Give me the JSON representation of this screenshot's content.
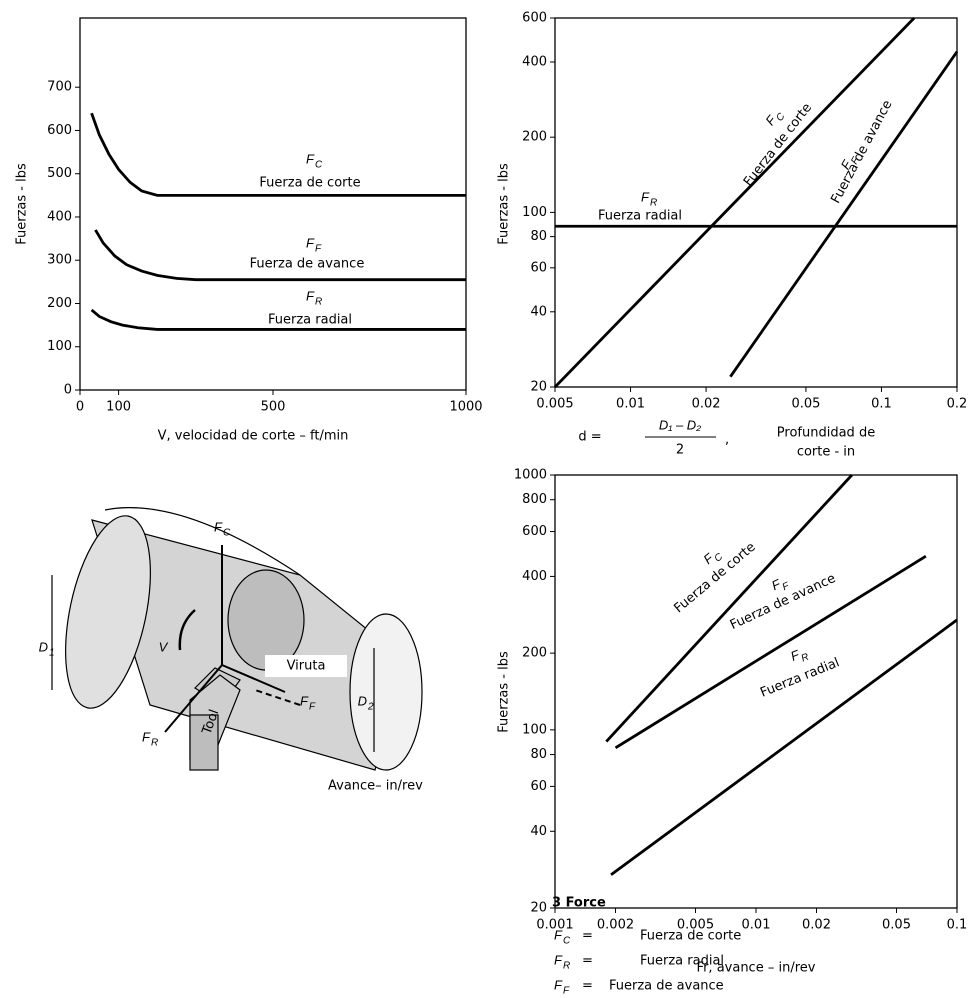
{
  "chart_data": [
    {
      "type": "line",
      "log_scale": false,
      "x_label": "V, velocidad de corte – ft/min",
      "y_label": "Fuerzas - lbs",
      "xlim": [
        0,
        1000
      ],
      "ylim": [
        0,
        860
      ],
      "xticks": [
        0,
        100,
        500,
        1000
      ],
      "yticks": [
        0,
        100,
        200,
        300,
        400,
        500,
        600,
        700
      ],
      "series": [
        {
          "name": "Fuerza de corte",
          "symbol": "F",
          "subscript": "C",
          "color": "#000000",
          "x": [
            30,
            50,
            75,
            100,
            130,
            160,
            200,
            250,
            500,
            1000
          ],
          "values": [
            640,
            590,
            545,
            510,
            480,
            460,
            450,
            450,
            450,
            450
          ]
        },
        {
          "name": "Fuerza de avance",
          "symbol": "F",
          "subscript": "F",
          "color": "#000000",
          "x": [
            40,
            60,
            90,
            120,
            160,
            200,
            250,
            300,
            500,
            1000
          ],
          "values": [
            370,
            340,
            310,
            290,
            275,
            265,
            258,
            255,
            255,
            255
          ]
        },
        {
          "name": "Fuerza radial",
          "symbol": "F",
          "subscript": "R",
          "color": "#000000",
          "x": [
            30,
            50,
            80,
            110,
            150,
            200,
            500,
            1000
          ],
          "values": [
            185,
            170,
            158,
            150,
            144,
            140,
            140,
            140
          ]
        }
      ]
    },
    {
      "type": "line",
      "log_scale": true,
      "y_label": "Fuerzas - lbs",
      "x_label_formula": {
        "lhs": "d =",
        "numerator": "D₁ – D₂",
        "denominator": "2",
        "comma": ","
      },
      "x_label_lines": [
        "Profundidad de",
        "corte - in"
      ],
      "xlim": [
        0.005,
        0.2
      ],
      "ylim": [
        20,
        600
      ],
      "xticks": [
        0.005,
        0.01,
        0.02,
        0.05,
        0.1,
        0.2
      ],
      "yticks": [
        20,
        40,
        60,
        80,
        100,
        200,
        400,
        600
      ],
      "series": [
        {
          "name": "Fuerza de corte",
          "symbol": "F",
          "subscript": "C",
          "color": "#000000",
          "x": [
            0.005,
            0.135
          ],
          "values": [
            20,
            600
          ]
        },
        {
          "name": "Fuerza de avance",
          "symbol": "F",
          "subscript": "F",
          "color": "#000000",
          "x": [
            0.025,
            0.2
          ],
          "values": [
            22,
            440
          ]
        },
        {
          "name": "Fuerza radial",
          "symbol": "F",
          "subscript": "R",
          "color": "#000000",
          "x": [
            0.005,
            0.2
          ],
          "values": [
            88,
            88
          ]
        }
      ]
    },
    {
      "type": "line",
      "log_scale": true,
      "x_label": "Fr, avance – in/rev",
      "y_label": "Fuerzas - lbs",
      "xlim": [
        0.001,
        0.1
      ],
      "ylim": [
        20,
        1000
      ],
      "xticks": [
        0.001,
        0.002,
        0.005,
        0.01,
        0.02,
        0.05,
        0.1
      ],
      "yticks": [
        20,
        40,
        60,
        80,
        100,
        200,
        400,
        600,
        800,
        1000
      ],
      "series": [
        {
          "name": "Fuerza de corte",
          "symbol": "F",
          "subscript": "C",
          "color": "#000000",
          "x": [
            0.0018,
            0.03
          ],
          "values": [
            90,
            1000
          ]
        },
        {
          "name": "Fuerza de avance",
          "symbol": "F",
          "subscript": "F",
          "color": "#000000",
          "x": [
            0.002,
            0.07
          ],
          "values": [
            85,
            480
          ]
        },
        {
          "name": "Fuerza radial",
          "symbol": "F",
          "subscript": "R",
          "color": "#000000",
          "x": [
            0.0019,
            0.1
          ],
          "values": [
            27,
            270
          ]
        }
      ]
    }
  ],
  "diagram": {
    "fc": {
      "symbol": "F",
      "subscript": "C"
    },
    "ff": {
      "symbol": "F",
      "subscript": "F"
    },
    "fr": {
      "symbol": "F",
      "subscript": "R"
    },
    "v": "V",
    "chip": "Viruta",
    "d1": {
      "symbol": "D",
      "subscript": "1"
    },
    "d2": {
      "symbol": "D",
      "subscript": "2"
    },
    "tool": "Tool",
    "feed": "Avance– in/rev"
  },
  "legend": {
    "title": "3 Force",
    "rows": [
      {
        "symbol": "F",
        "subscript": "C",
        "sign": "=",
        "label": "Fuerza de corte"
      },
      {
        "symbol": "F",
        "subscript": "R",
        "sign": "=",
        "label": "Fuerza radial"
      },
      {
        "symbol": "F",
        "subscript": "F",
        "sign": "=",
        "label": "Fuerza de avance"
      }
    ]
  }
}
